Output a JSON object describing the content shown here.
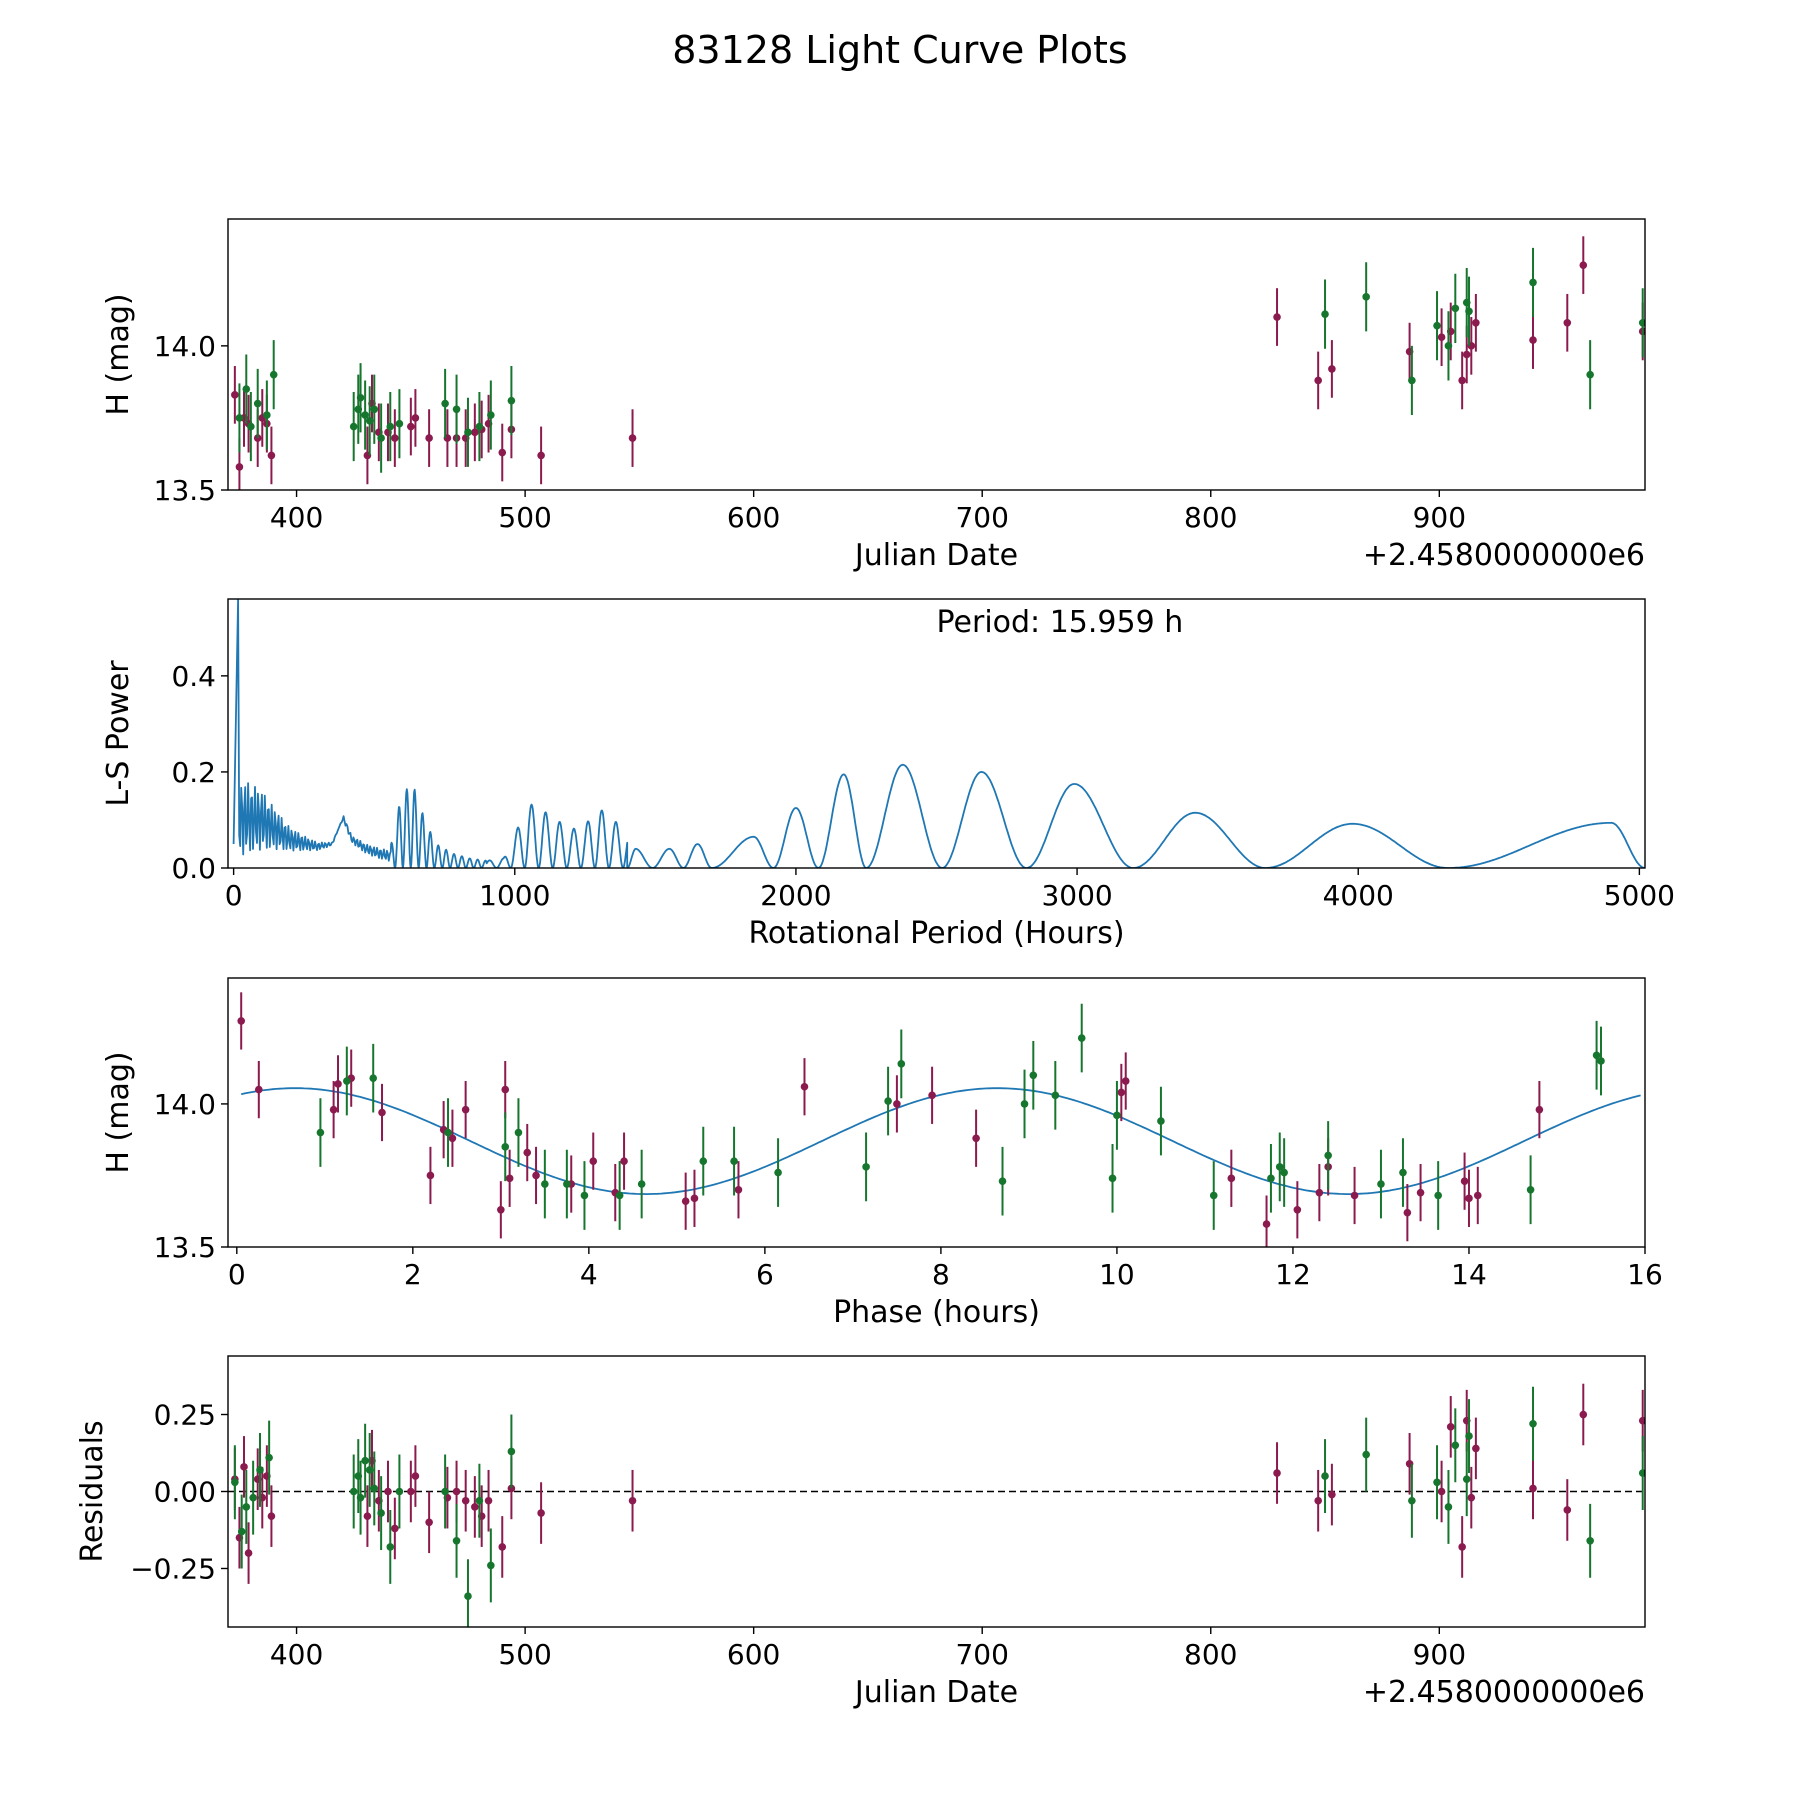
{
  "figure": {
    "title": "83128 Light Curve Plots"
  },
  "colors": {
    "magenta": "#8b1a4e",
    "green": "#17762e",
    "line": "#1f77b4",
    "black": "#000000"
  },
  "chart_data": [
    {
      "type": "scatter",
      "id": "lightcurve",
      "xlabel": "Julian Date",
      "ylabel": "H (mag)",
      "offset_label": "+2.4580000000e6",
      "xlim": [
        370,
        990
      ],
      "ylim": [
        13.5,
        14.44
      ],
      "xticks": [
        400,
        500,
        600,
        700,
        800,
        900
      ],
      "yticks": [
        13.5,
        14.0
      ],
      "ytick_labels": [
        "13.5",
        "14.0"
      ],
      "series": [
        {
          "name": "magenta",
          "err": 0.1,
          "x": [
            373,
            375,
            377,
            379,
            383,
            385,
            387,
            389,
            431,
            433,
            436,
            440,
            443,
            450,
            452,
            458,
            466,
            470,
            474,
            478,
            481,
            484,
            490,
            494,
            507,
            547,
            829,
            847,
            853,
            887,
            901,
            905,
            910,
            912,
            914,
            916,
            941,
            956,
            963,
            989
          ],
          "y": [
            13.83,
            13.58,
            13.75,
            13.73,
            13.68,
            13.75,
            13.73,
            13.62,
            13.62,
            13.8,
            13.7,
            13.7,
            13.68,
            13.72,
            13.75,
            13.68,
            13.68,
            13.68,
            13.68,
            13.7,
            13.71,
            13.73,
            13.63,
            13.71,
            13.62,
            13.68,
            14.1,
            13.88,
            13.92,
            13.98,
            14.03,
            14.05,
            13.88,
            13.97,
            14.0,
            14.08,
            14.02,
            14.08,
            14.28,
            14.05
          ]
        },
        {
          "name": "green",
          "err": 0.12,
          "x": [
            375,
            378,
            380,
            383,
            387,
            390,
            425,
            427,
            428,
            430,
            432,
            434,
            437,
            441,
            445,
            465,
            470,
            475,
            480,
            485,
            494,
            850,
            868,
            888,
            899,
            904,
            907,
            912,
            913,
            941,
            966,
            989
          ],
          "y": [
            13.75,
            13.85,
            13.72,
            13.8,
            13.76,
            13.9,
            13.72,
            13.78,
            13.82,
            13.76,
            13.74,
            13.78,
            13.68,
            13.72,
            13.73,
            13.8,
            13.78,
            13.7,
            13.72,
            13.76,
            13.81,
            14.11,
            14.17,
            13.88,
            14.07,
            14.0,
            14.13,
            14.15,
            14.12,
            14.22,
            13.9,
            14.08
          ]
        }
      ]
    },
    {
      "type": "line",
      "id": "periodogram",
      "xlabel": "Rotational Period (Hours)",
      "ylabel": "L-S Power",
      "annotation": "Period: 15.959 h",
      "xlim": [
        -20,
        5020
      ],
      "ylim": [
        0,
        0.56
      ],
      "xticks": [
        0,
        1000,
        2000,
        3000,
        4000,
        5000
      ],
      "yticks": [
        0.0,
        0.2,
        0.4
      ],
      "ytick_labels": [
        "0.0",
        "0.2",
        "0.4"
      ],
      "peak": {
        "x": 16,
        "y": 0.56
      },
      "series": [
        {
          "name": "L-S power",
          "envelope": [
            [
              0,
              0.2
            ],
            [
              50,
              0.21
            ],
            [
              100,
              0.2
            ],
            [
              150,
              0.16
            ],
            [
              200,
              0.12
            ],
            [
              260,
              0.1
            ],
            [
              300,
              0.09
            ],
            [
              350,
              0.1
            ],
            [
              390,
              0.21
            ],
            [
              420,
              0.12
            ],
            [
              470,
              0.08
            ],
            [
              520,
              0.06
            ],
            [
              560,
              0.05
            ],
            [
              600,
              0.16
            ],
            [
              640,
              0.17
            ],
            [
              680,
              0.1
            ],
            [
              720,
              0.05
            ],
            [
              780,
              0.03
            ],
            [
              840,
              0.02
            ],
            [
              900,
              0.015
            ],
            [
              960,
              0.02
            ],
            [
              1000,
              0.07
            ],
            [
              1050,
              0.135
            ],
            [
              1100,
              0.12
            ],
            [
              1150,
              0.1
            ],
            [
              1200,
              0.08
            ],
            [
              1250,
              0.09
            ],
            [
              1300,
              0.125
            ],
            [
              1350,
              0.1
            ],
            [
              1400,
              0.08
            ]
          ],
          "cutover": 1400,
          "humps": [
            [
              1400,
              1490,
              1430,
              0.04
            ],
            [
              1490,
              1600,
              1550,
              0.04
            ],
            [
              1600,
              1700,
              1650,
              0.05
            ],
            [
              1700,
              1920,
              1850,
              0.065
            ],
            [
              1920,
              2080,
              2000,
              0.125
            ],
            [
              2080,
              2250,
              2170,
              0.195
            ],
            [
              2250,
              2520,
              2380,
              0.215
            ],
            [
              2520,
              2820,
              2660,
              0.2
            ],
            [
              2820,
              3200,
              2990,
              0.175
            ],
            [
              3200,
              3670,
              3420,
              0.115
            ],
            [
              3670,
              4320,
              3980,
              0.092
            ],
            [
              4320,
              5020,
              4900,
              0.094
            ]
          ]
        }
      ]
    },
    {
      "type": "scatter",
      "id": "phased",
      "xlabel": "Phase (hours)",
      "ylabel": "H (mag)",
      "xlim": [
        -0.1,
        16.0
      ],
      "ylim": [
        13.5,
        14.44
      ],
      "xticks": [
        0,
        2,
        4,
        6,
        8,
        10,
        12,
        14,
        16
      ],
      "yticks": [
        13.5,
        14.0
      ],
      "ytick_labels": [
        "13.5",
        "14.0"
      ],
      "model": {
        "period": 7.98,
        "mean": 13.87,
        "amp": 0.185,
        "peak_phase": 0.66
      },
      "series": [
        {
          "name": "magenta",
          "err": 0.1,
          "x": [
            0.05,
            0.25,
            1.1,
            1.15,
            1.3,
            1.65,
            2.2,
            2.35,
            2.45,
            2.6,
            3.0,
            3.05,
            3.1,
            3.3,
            3.4,
            3.8,
            4.05,
            4.3,
            4.4,
            5.1,
            5.2,
            5.7,
            6.45,
            7.5,
            7.9,
            8.4,
            10.05,
            10.1,
            11.3,
            11.7,
            12.05,
            12.3,
            12.4,
            12.7,
            13.3,
            13.45,
            13.95,
            14.0,
            14.1,
            14.8
          ],
          "y": [
            14.29,
            14.05,
            13.98,
            14.07,
            14.09,
            13.97,
            13.75,
            13.91,
            13.88,
            13.98,
            13.63,
            14.05,
            13.74,
            13.83,
            13.75,
            13.72,
            13.8,
            13.69,
            13.8,
            13.66,
            13.67,
            13.7,
            14.06,
            14.0,
            14.03,
            13.88,
            14.04,
            14.08,
            13.74,
            13.58,
            13.63,
            13.69,
            13.78,
            13.68,
            13.62,
            13.69,
            13.73,
            13.67,
            13.68,
            13.98
          ]
        },
        {
          "name": "green",
          "err": 0.12,
          "x": [
            0.95,
            1.25,
            1.55,
            2.4,
            3.05,
            3.2,
            3.5,
            3.75,
            3.95,
            4.35,
            4.6,
            5.3,
            5.65,
            6.15,
            7.15,
            7.4,
            7.55,
            8.7,
            8.95,
            9.05,
            9.3,
            9.6,
            9.95,
            10.0,
            10.5,
            11.1,
            11.75,
            11.85,
            11.9,
            12.4,
            13.0,
            13.25,
            13.65,
            14.7,
            15.45,
            15.5
          ],
          "y": [
            13.9,
            14.08,
            14.09,
            13.9,
            13.85,
            13.9,
            13.72,
            13.72,
            13.68,
            13.68,
            13.72,
            13.8,
            13.8,
            13.76,
            13.78,
            14.01,
            14.14,
            13.73,
            14.0,
            14.1,
            14.03,
            14.23,
            13.74,
            13.96,
            13.94,
            13.68,
            13.74,
            13.78,
            13.76,
            13.82,
            13.72,
            13.76,
            13.68,
            13.7,
            14.17,
            14.15
          ]
        }
      ]
    },
    {
      "type": "scatter",
      "id": "residuals",
      "xlabel": "Julian Date",
      "ylabel": "Residuals",
      "offset_label": "+2.4580000000e6",
      "xlim": [
        370,
        990
      ],
      "ylim": [
        -0.44,
        0.44
      ],
      "xticks": [
        400,
        500,
        600,
        700,
        800,
        900
      ],
      "yticks": [
        -0.25,
        0.0,
        0.25
      ],
      "ytick_labels": [
        "−0.25",
        "0.00",
        "0.25"
      ],
      "hline": 0,
      "series": [
        {
          "name": "magenta",
          "err": 0.1,
          "x": [
            373,
            375,
            377,
            379,
            383,
            385,
            387,
            389,
            431,
            433,
            436,
            440,
            443,
            450,
            452,
            458,
            466,
            470,
            474,
            478,
            481,
            484,
            490,
            494,
            507,
            547,
            829,
            847,
            853,
            887,
            901,
            905,
            910,
            912,
            914,
            916,
            941,
            956,
            963,
            989
          ],
          "y": [
            0.04,
            -0.15,
            0.08,
            -0.2,
            0.04,
            -0.02,
            0.05,
            -0.08,
            -0.08,
            0.1,
            -0.03,
            0.0,
            -0.12,
            0.0,
            0.05,
            -0.1,
            -0.02,
            0.0,
            -0.03,
            -0.05,
            -0.08,
            -0.03,
            -0.18,
            0.01,
            -0.07,
            -0.03,
            0.06,
            -0.03,
            -0.01,
            0.09,
            0.0,
            0.21,
            -0.18,
            0.23,
            -0.02,
            0.14,
            0.01,
            -0.06,
            0.25,
            0.23
          ]
        },
        {
          "name": "green",
          "err": 0.12,
          "x": [
            373,
            376,
            378,
            381,
            384,
            388,
            425,
            427,
            428,
            430,
            432,
            434,
            437,
            441,
            445,
            465,
            470,
            475,
            480,
            485,
            494,
            850,
            868,
            888,
            899,
            904,
            907,
            912,
            913,
            941,
            966,
            989
          ],
          "y": [
            0.03,
            -0.13,
            -0.05,
            -0.02,
            0.07,
            0.11,
            0.0,
            0.05,
            -0.02,
            0.1,
            0.07,
            0.01,
            -0.07,
            -0.18,
            0.0,
            0.0,
            -0.16,
            -0.34,
            -0.03,
            -0.24,
            0.13,
            0.05,
            0.12,
            -0.03,
            0.03,
            -0.05,
            0.15,
            0.04,
            0.18,
            0.22,
            -0.16,
            0.06
          ]
        }
      ]
    }
  ]
}
